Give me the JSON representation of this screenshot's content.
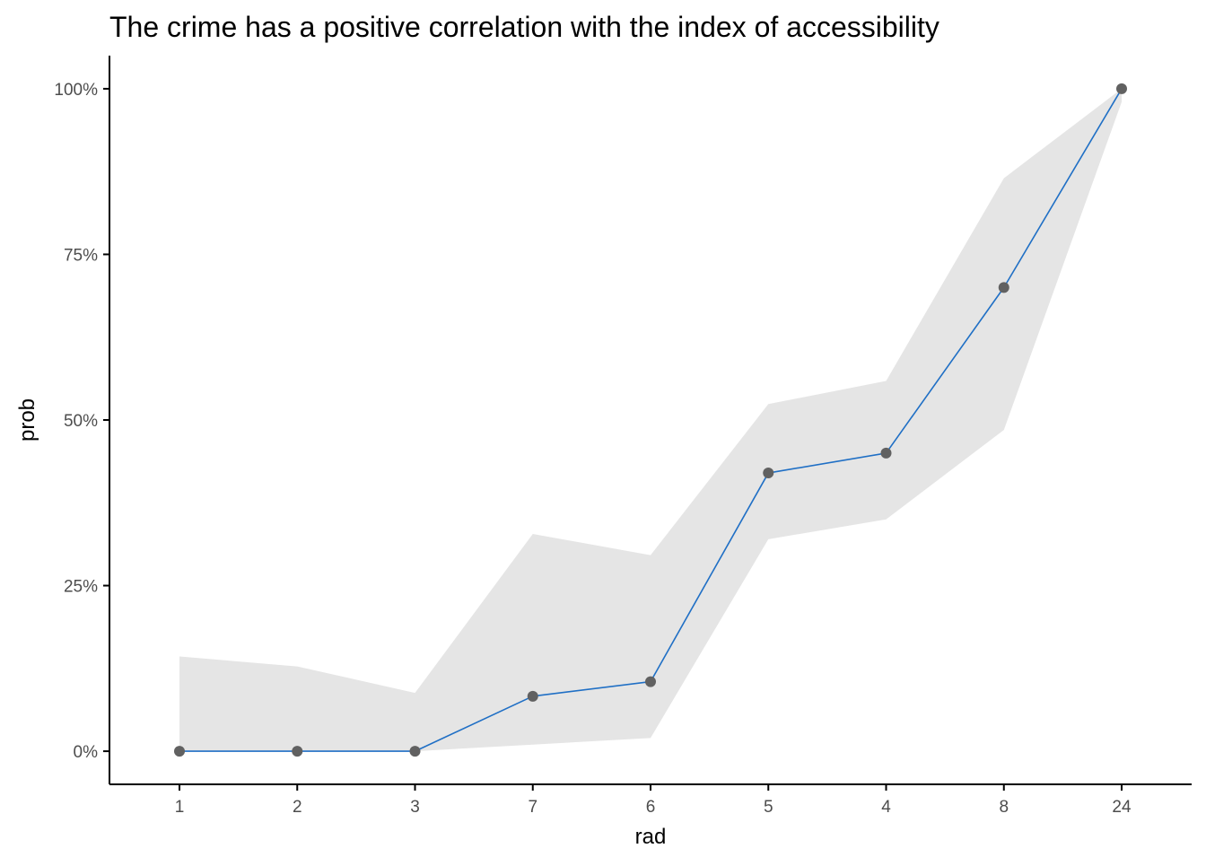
{
  "chart_data": {
    "type": "line",
    "title": "The crime has a positive correlation with the index of accessibility",
    "xlabel": "rad",
    "ylabel": "prob",
    "categories": [
      "1",
      "2",
      "3",
      "7",
      "6",
      "5",
      "4",
      "8",
      "24"
    ],
    "series": [
      {
        "values": [
          0.0,
          0.0,
          0.0,
          0.083,
          0.105,
          0.42,
          0.45,
          0.7,
          1.0
        ],
        "ci_lower": [
          0.0,
          0.0,
          0.0,
          0.01,
          0.02,
          0.32,
          0.35,
          0.485,
          0.98
        ],
        "ci_upper": [
          0.143,
          0.128,
          0.088,
          0.328,
          0.296,
          0.524,
          0.559,
          0.865,
          1.0
        ]
      }
    ],
    "ylim": [
      -0.05,
      1.05
    ],
    "yticks": [
      0,
      0.25,
      0.5,
      0.75,
      1.0
    ],
    "ytick_labels": [
      "0%",
      "25%",
      "50%",
      "75%",
      "100%"
    ],
    "grid": false,
    "colors": {
      "line": "#1f6fc5",
      "point": "#616161",
      "ribbon": "#e5e5e5",
      "axis": "#000000",
      "tick_label": "#4d4d4d"
    }
  }
}
